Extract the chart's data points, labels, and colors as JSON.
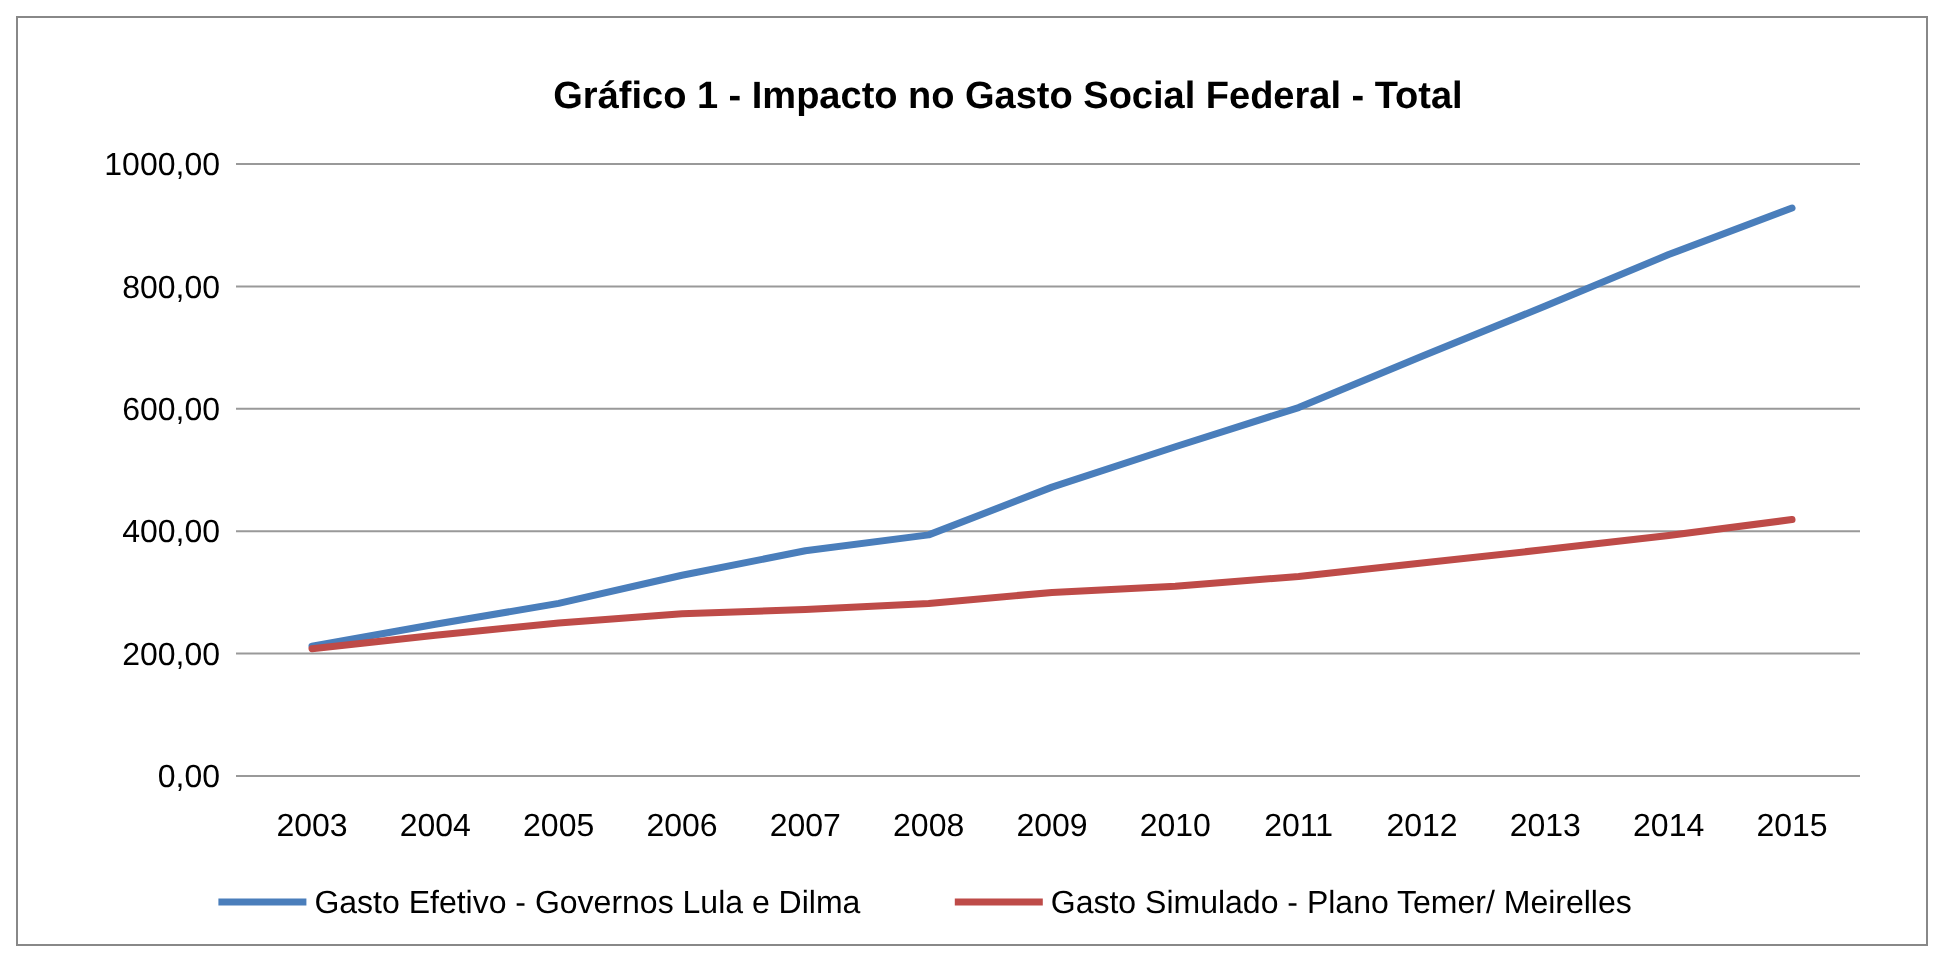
{
  "chart_data": {
    "type": "line",
    "title": "Gráfico 1 - Impacto no Gasto Social Federal - Total",
    "categories": [
      "2003",
      "2004",
      "2005",
      "2006",
      "2007",
      "2008",
      "2009",
      "2010",
      "2011",
      "2012",
      "2013",
      "2014",
      "2015"
    ],
    "series": [
      {
        "name": "Gasto Efetivo - Governos Lula e Dilma",
        "color": "#4a7ebb",
        "values": [
          212,
          248,
          282,
          328,
          368,
          394,
          472,
          538,
          602,
          686,
          768,
          852,
          928
        ]
      },
      {
        "name": "Gasto Simulado - Plano Temer/ Meirelles",
        "color": "#be4b48",
        "values": [
          208,
          230,
          250,
          265,
          272,
          282,
          300,
          310,
          326,
          348,
          370,
          393,
          419
        ]
      }
    ],
    "ylim": [
      0,
      1000
    ],
    "yticks": [
      {
        "value": 0,
        "label": "0,00"
      },
      {
        "value": 200,
        "label": "200,00"
      },
      {
        "value": 400,
        "label": "400,00"
      },
      {
        "value": 600,
        "label": "600,00"
      },
      {
        "value": 800,
        "label": "800,00"
      },
      {
        "value": 1000,
        "label": "1000,00"
      }
    ],
    "grid": "y",
    "legend": "bottom",
    "marker": "none",
    "line_style": "solid"
  }
}
